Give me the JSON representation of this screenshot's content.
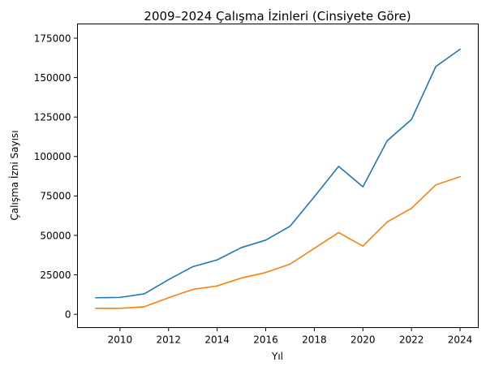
{
  "chart_data": {
    "type": "line",
    "title": "2009–2024 Çalışma İzinleri (Cinsiyete Göre)",
    "xlabel": "Yıl",
    "ylabel": "Çalışma İzni Sayısı",
    "x": [
      2009,
      2010,
      2011,
      2012,
      2013,
      2014,
      2015,
      2016,
      2017,
      2018,
      2019,
      2020,
      2021,
      2022,
      2023,
      2024
    ],
    "xlim": [
      2008.25,
      2024.75
    ],
    "ylim": [
      -8400,
      184000
    ],
    "xticks": [
      "2010",
      "2012",
      "2014",
      "2016",
      "2018",
      "2020",
      "2022",
      "2024"
    ],
    "yticks": [
      "0",
      "25000",
      "50000",
      "75000",
      "100000",
      "125000",
      "150000",
      "175000"
    ],
    "grid": false,
    "series": [
      {
        "color": "#1f77b4",
        "values": [
          10500,
          10700,
          13000,
          22000,
          30200,
          34500,
          42300,
          47000,
          55800,
          74500,
          93800,
          80800,
          110000,
          123500,
          157000,
          168000
        ]
      },
      {
        "color": "#ff7f0e",
        "values": [
          3800,
          3800,
          4800,
          10500,
          15800,
          18000,
          23000,
          26500,
          31800,
          41800,
          51800,
          43200,
          58500,
          67200,
          82000,
          87200
        ]
      }
    ]
  }
}
